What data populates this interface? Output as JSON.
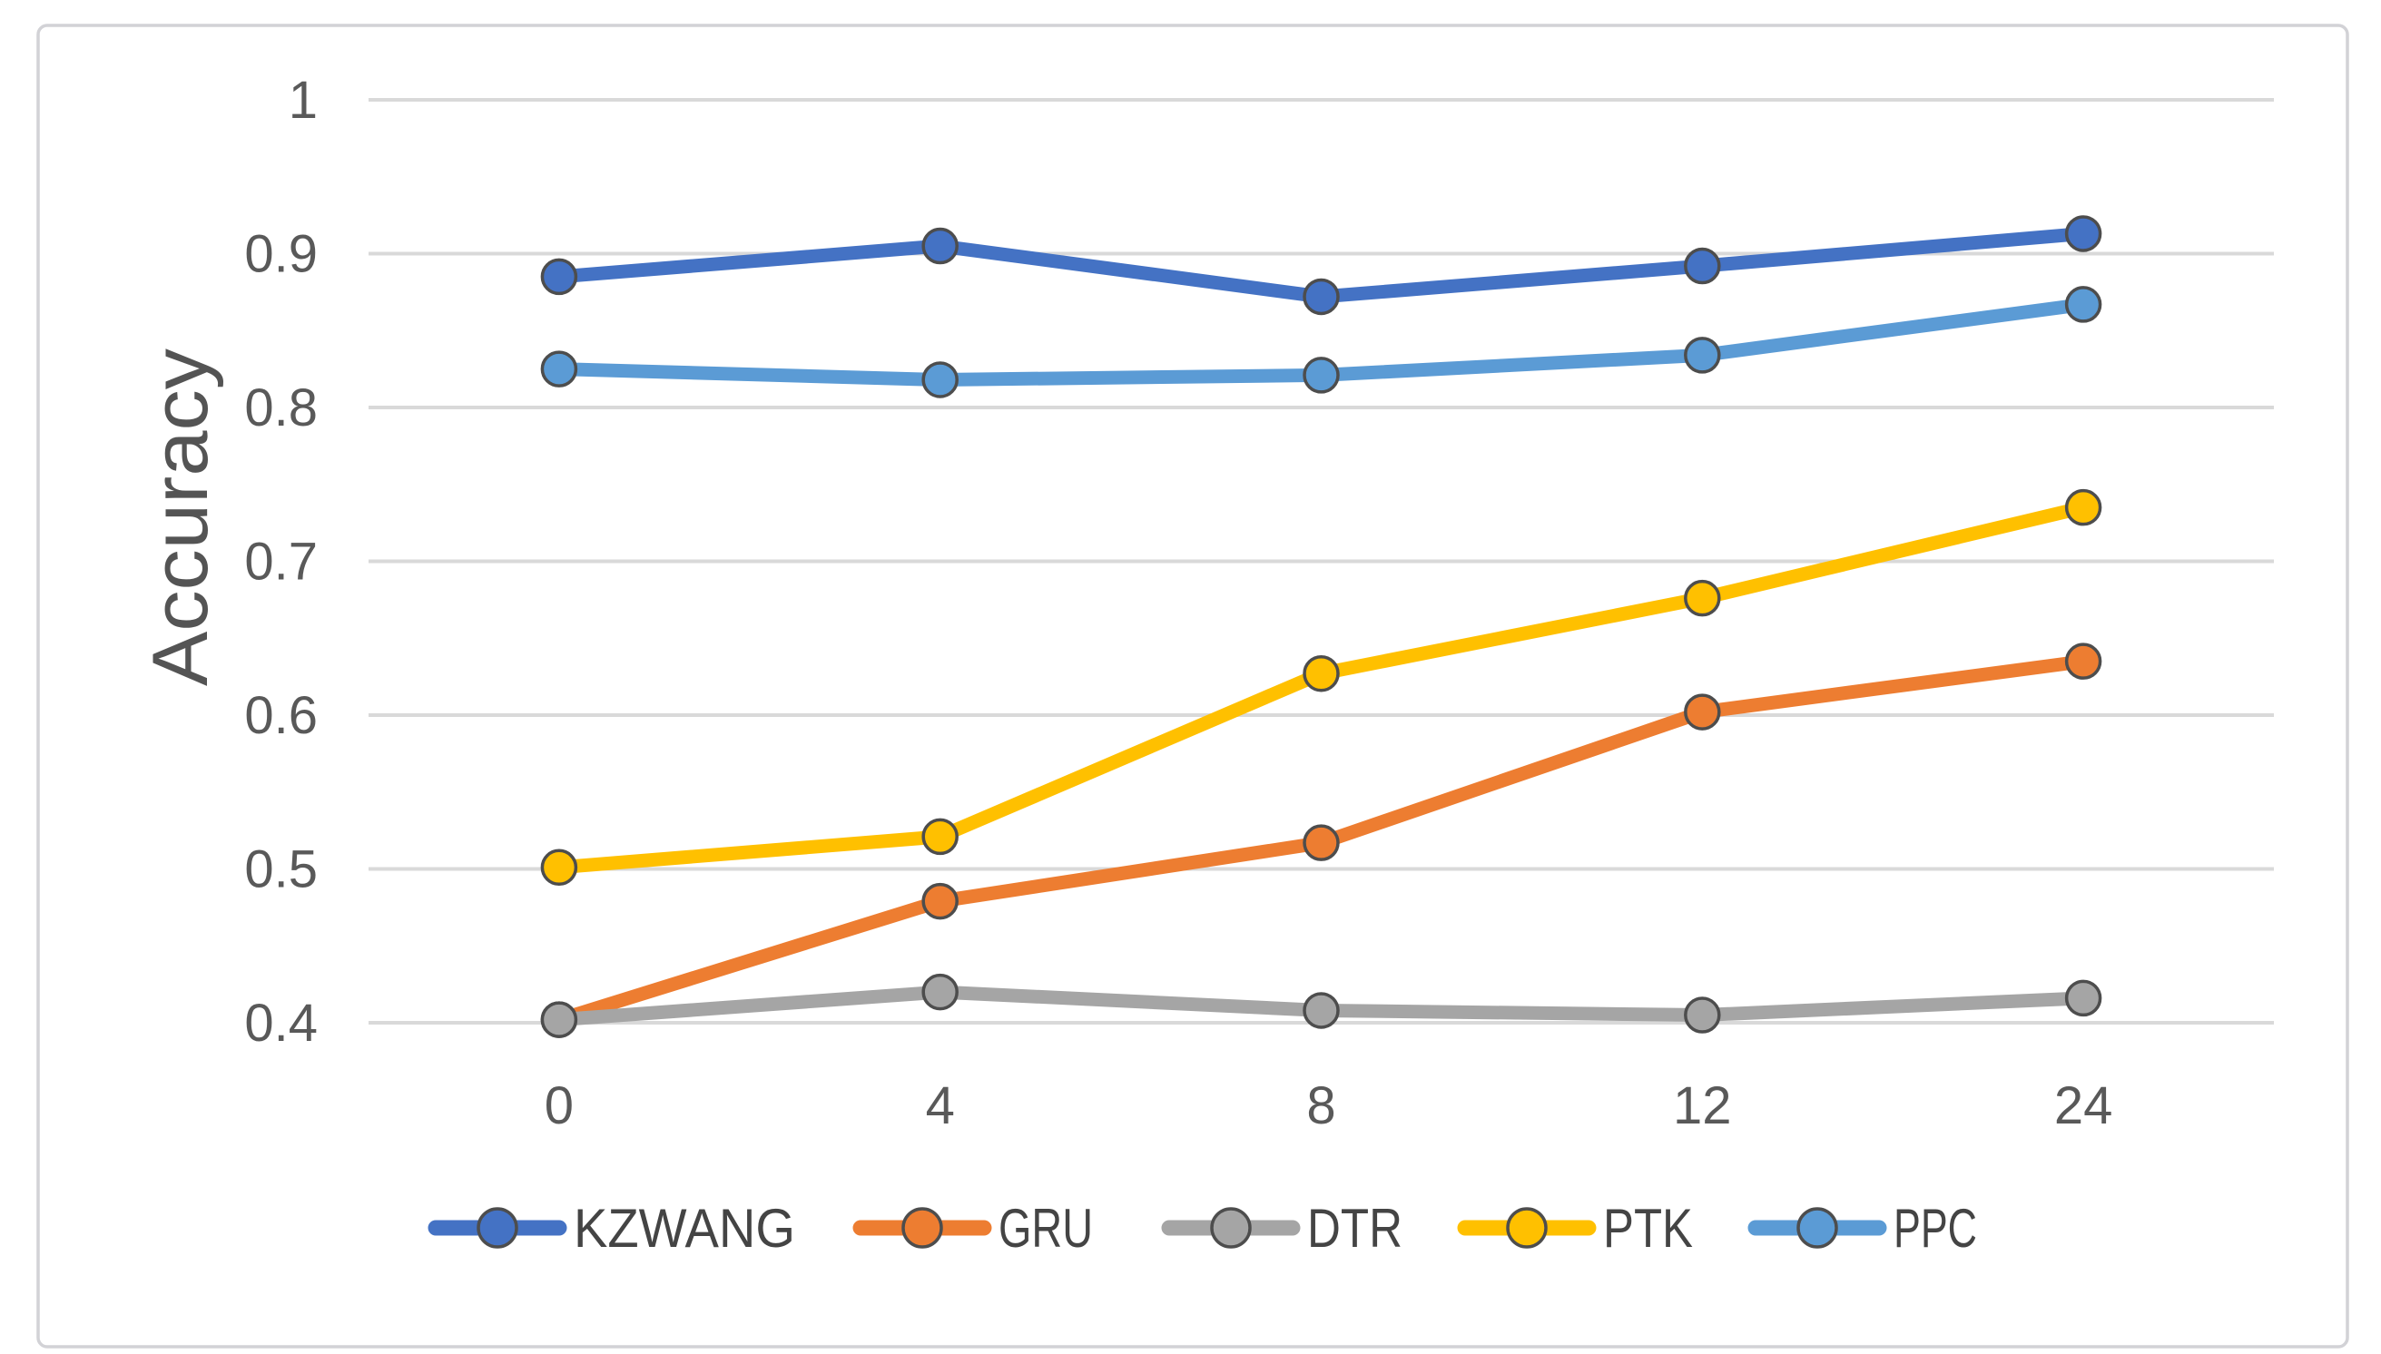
{
  "chart_data": {
    "type": "line",
    "title": "",
    "ylabel": "Accuracy",
    "xlabel": "",
    "categories": [
      "0",
      "4",
      "8",
      "12",
      "24"
    ],
    "x_values": [
      0,
      4,
      8,
      12,
      24
    ],
    "ylim": [
      0.4,
      1.0
    ],
    "ytick_step": 0.1,
    "yticks": [
      {
        "value": 1.0,
        "label": "1"
      },
      {
        "value": 0.9,
        "label": "0.9"
      },
      {
        "value": 0.8,
        "label": "0.8"
      },
      {
        "value": 0.7,
        "label": "0.7"
      },
      {
        "value": 0.6,
        "label": "0.6"
      },
      {
        "value": 0.5,
        "label": "0.5"
      },
      {
        "value": 0.4,
        "label": "0.4"
      }
    ],
    "grid": "horizontal",
    "legend_position": "bottom",
    "series": [
      {
        "name": "KZWANG",
        "color": "#4472C4",
        "values": [
          0.885,
          0.905,
          0.872,
          0.892,
          0.913
        ]
      },
      {
        "name": "GRU",
        "color": "#ED7D31",
        "values": [
          0.402,
          0.479,
          0.517,
          0.602,
          0.635
        ]
      },
      {
        "name": "DTR",
        "color": "#A5A5A5",
        "values": [
          0.402,
          0.42,
          0.408,
          0.405,
          0.416
        ]
      },
      {
        "name": "PTK",
        "color": "#FFC000",
        "values": [
          0.501,
          0.521,
          0.627,
          0.676,
          0.735
        ]
      },
      {
        "name": "PPC",
        "color": "#5B9BD5",
        "values": [
          0.825,
          0.818,
          0.821,
          0.834,
          0.867
        ]
      }
    ]
  },
  "colors": {
    "background": "#FFFFFF",
    "frame_border": "#D2D2D6",
    "gridline": "#D9D9D9",
    "axis_text": "#595959",
    "title_text": "#545454",
    "legend_text": "#444444",
    "marker_outline": "#4D4D4D"
  }
}
